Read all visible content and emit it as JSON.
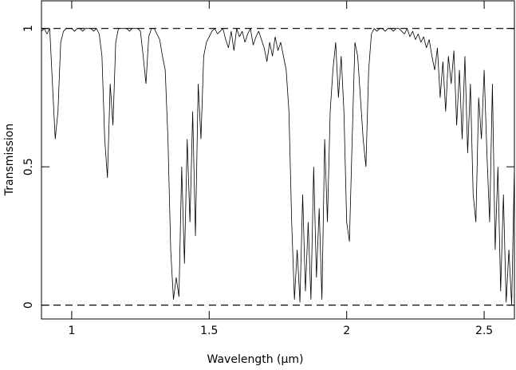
{
  "chart_data": {
    "type": "line",
    "xlabel": "Wavelength (μm)",
    "ylabel": "Transmission",
    "xlim": [
      0.89,
      2.61
    ],
    "ylim": [
      -0.05,
      1.1
    ],
    "xticks": [
      1,
      1.5,
      2,
      2.5
    ],
    "yticks": [
      0,
      0.5,
      1
    ],
    "hlines": [
      0,
      1
    ],
    "x": [
      0.89,
      0.9,
      0.91,
      0.92,
      0.93,
      0.94,
      0.95,
      0.96,
      0.97,
      0.98,
      0.99,
      1.0,
      1.01,
      1.02,
      1.03,
      1.04,
      1.05,
      1.06,
      1.07,
      1.08,
      1.09,
      1.1,
      1.11,
      1.12,
      1.13,
      1.14,
      1.15,
      1.16,
      1.17,
      1.18,
      1.19,
      1.2,
      1.21,
      1.22,
      1.23,
      1.24,
      1.25,
      1.26,
      1.27,
      1.28,
      1.29,
      1.3,
      1.31,
      1.32,
      1.33,
      1.34,
      1.35,
      1.36,
      1.37,
      1.38,
      1.39,
      1.4,
      1.41,
      1.42,
      1.43,
      1.44,
      1.45,
      1.46,
      1.47,
      1.48,
      1.49,
      1.5,
      1.51,
      1.52,
      1.53,
      1.54,
      1.55,
      1.56,
      1.57,
      1.58,
      1.59,
      1.6,
      1.61,
      1.62,
      1.63,
      1.64,
      1.65,
      1.66,
      1.67,
      1.68,
      1.69,
      1.7,
      1.71,
      1.72,
      1.73,
      1.74,
      1.75,
      1.76,
      1.77,
      1.78,
      1.79,
      1.8,
      1.81,
      1.82,
      1.83,
      1.84,
      1.85,
      1.86,
      1.87,
      1.88,
      1.89,
      1.9,
      1.91,
      1.92,
      1.93,
      1.94,
      1.95,
      1.96,
      1.97,
      1.98,
      1.99,
      2.0,
      2.01,
      2.02,
      2.03,
      2.04,
      2.05,
      2.06,
      2.07,
      2.08,
      2.09,
      2.1,
      2.11,
      2.12,
      2.13,
      2.14,
      2.15,
      2.16,
      2.17,
      2.18,
      2.19,
      2.2,
      2.21,
      2.22,
      2.23,
      2.24,
      2.25,
      2.26,
      2.27,
      2.28,
      2.29,
      2.3,
      2.31,
      2.32,
      2.33,
      2.34,
      2.35,
      2.36,
      2.37,
      2.38,
      2.39,
      2.4,
      2.41,
      2.42,
      2.43,
      2.44,
      2.45,
      2.46,
      2.47,
      2.48,
      2.49,
      2.5,
      2.51,
      2.52,
      2.53,
      2.54,
      2.55,
      2.56,
      2.57,
      2.58,
      2.59,
      2.6,
      2.61
    ],
    "series": [
      {
        "color": "#000000",
        "values": [
          0.99,
          1,
          0.98,
          1,
          0.8,
          0.6,
          0.7,
          0.95,
          0.99,
          1,
          1,
          1,
          0.99,
          1,
          1,
          0.99,
          1,
          1,
          1,
          0.99,
          1,
          0.98,
          0.9,
          0.6,
          0.46,
          0.8,
          0.65,
          0.95,
          1,
          1,
          1,
          1,
          0.99,
          1,
          1,
          1,
          0.99,
          0.9,
          0.8,
          0.97,
          1,
          1,
          0.98,
          0.96,
          0.9,
          0.85,
          0.6,
          0.2,
          0.02,
          0.1,
          0.03,
          0.5,
          0.15,
          0.6,
          0.3,
          0.7,
          0.25,
          0.8,
          0.6,
          0.9,
          0.95,
          0.97,
          0.99,
          1,
          0.98,
          0.99,
          1,
          0.96,
          0.93,
          0.99,
          0.92,
          1,
          0.97,
          0.99,
          0.95,
          0.98,
          1,
          0.94,
          0.97,
          0.99,
          0.96,
          0.93,
          0.88,
          0.95,
          0.9,
          0.97,
          0.92,
          0.95,
          0.9,
          0.85,
          0.7,
          0.3,
          0.02,
          0.2,
          0.01,
          0.4,
          0.05,
          0.3,
          0.02,
          0.5,
          0.1,
          0.35,
          0.02,
          0.6,
          0.3,
          0.7,
          0.85,
          0.95,
          0.75,
          0.9,
          0.7,
          0.3,
          0.23,
          0.6,
          0.95,
          0.9,
          0.75,
          0.6,
          0.5,
          0.85,
          0.98,
          1,
          0.99,
          1,
          1,
          0.99,
          1,
          1,
          0.99,
          1,
          1,
          0.99,
          0.98,
          1,
          0.97,
          0.99,
          0.96,
          0.98,
          0.95,
          0.97,
          0.93,
          0.96,
          0.9,
          0.85,
          0.93,
          0.75,
          0.88,
          0.7,
          0.9,
          0.8,
          0.92,
          0.65,
          0.85,
          0.6,
          0.9,
          0.55,
          0.8,
          0.4,
          0.3,
          0.75,
          0.6,
          0.85,
          0.55,
          0.3,
          0.8,
          0.2,
          0.5,
          0.05,
          0.4,
          0.01,
          0.2,
          0,
          0.5
        ]
      }
    ]
  }
}
